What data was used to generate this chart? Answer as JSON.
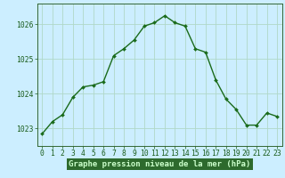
{
  "x": [
    0,
    1,
    2,
    3,
    4,
    5,
    6,
    7,
    8,
    9,
    10,
    11,
    12,
    13,
    14,
    15,
    16,
    17,
    18,
    19,
    20,
    21,
    22,
    23
  ],
  "y": [
    1022.85,
    1023.2,
    1023.4,
    1023.9,
    1024.2,
    1024.25,
    1024.35,
    1025.1,
    1025.3,
    1025.55,
    1025.95,
    1026.05,
    1026.25,
    1026.05,
    1025.95,
    1025.3,
    1025.2,
    1024.4,
    1023.85,
    1023.55,
    1023.1,
    1023.1,
    1023.45,
    1023.35
  ],
  "ylim": [
    1022.5,
    1026.6
  ],
  "yticks": [
    1023,
    1024,
    1025,
    1026
  ],
  "xticks": [
    0,
    1,
    2,
    3,
    4,
    5,
    6,
    7,
    8,
    9,
    10,
    11,
    12,
    13,
    14,
    15,
    16,
    17,
    18,
    19,
    20,
    21,
    22,
    23
  ],
  "xlabel": "Graphe pression niveau de la mer (hPa)",
  "line_color": "#1a6b1a",
  "marker": "D",
  "marker_size": 2.0,
  "bg_color": "#cceeff",
  "grid_color": "#aaddcc",
  "axis_color": "#336633",
  "tick_color": "#1a5c1a",
  "label_color": "#003300",
  "xlabel_bg": "#2d6a2d",
  "xlabel_fg": "#ccffcc",
  "xlabel_fontsize": 6.5,
  "tick_fontsize": 5.8,
  "line_width": 1.0
}
